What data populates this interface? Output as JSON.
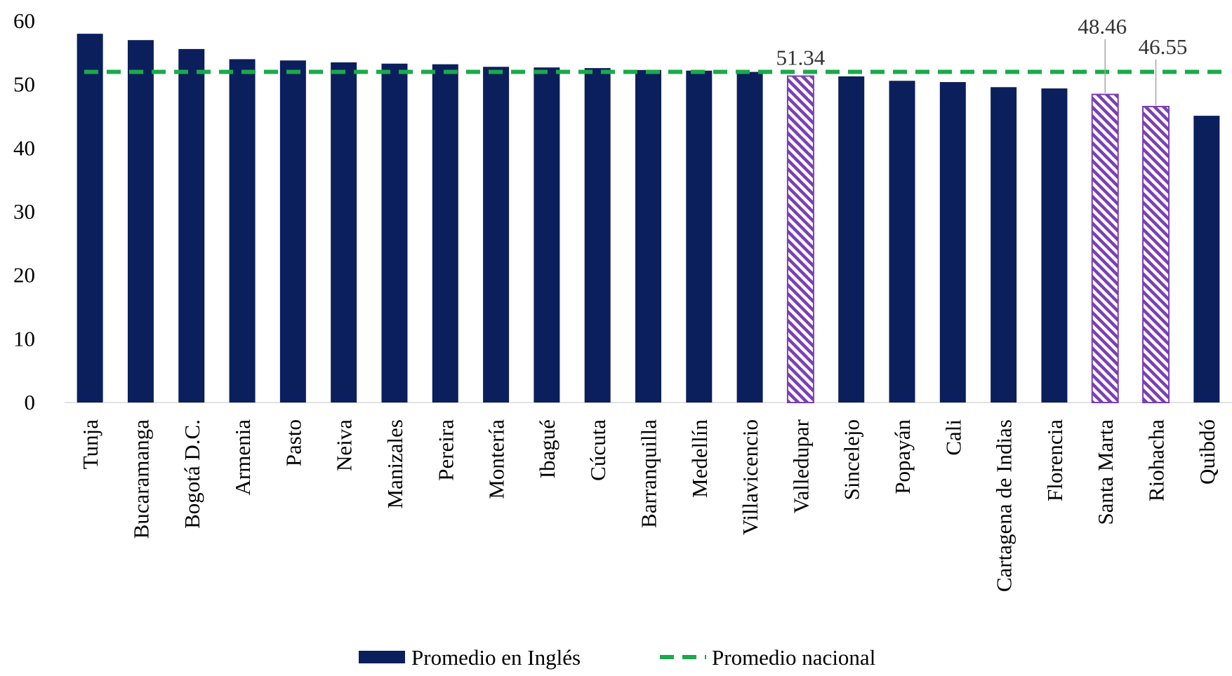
{
  "chart_data": {
    "type": "bar",
    "categories": [
      "Tunja",
      "Bucaramanga",
      "Bogotá D.C.",
      "Armenia",
      "Pasto",
      "Neiva",
      "Manizales",
      "Pereira",
      "Montería",
      "Ibagué",
      "Cúcuta",
      "Barranquilla",
      "Medellín",
      "Villavicencio",
      "Valledupar",
      "Sincelejo",
      "Popayán",
      "Cali",
      "Cartagena de Indias",
      "Florencia",
      "Santa Marta",
      "Riohacha",
      "Quibdó"
    ],
    "series": [
      {
        "name": "Promedio en Inglés",
        "type": "bar",
        "color": "#0b1f5c",
        "values": [
          58.0,
          57.0,
          55.6,
          54.0,
          53.8,
          53.5,
          53.3,
          53.2,
          52.8,
          52.7,
          52.6,
          52.3,
          52.2,
          52.0,
          51.34,
          51.3,
          50.6,
          50.4,
          49.6,
          49.4,
          48.46,
          46.55,
          45.1
        ]
      },
      {
        "name": "Promedio nacional",
        "type": "line",
        "style": "dashed",
        "color": "#1aaa4a",
        "value": 52.0
      }
    ],
    "highlighted": [
      "Valledupar",
      "Santa Marta",
      "Riohacha"
    ],
    "highlight_style": {
      "fill": "hatched",
      "color": "#7b3fb5"
    },
    "data_labels": [
      {
        "category": "Valledupar",
        "text": "51.34"
      },
      {
        "category": "Santa Marta",
        "text": "48.46"
      },
      {
        "category": "Riohacha",
        "text": "46.55"
      }
    ],
    "yticks": [
      "0",
      "10",
      "20",
      "30",
      "40",
      "50",
      "60"
    ],
    "ylim": [
      0,
      60
    ],
    "title": "",
    "xlabel": "",
    "ylabel": "",
    "grid": false,
    "legend_position": "bottom-center"
  }
}
